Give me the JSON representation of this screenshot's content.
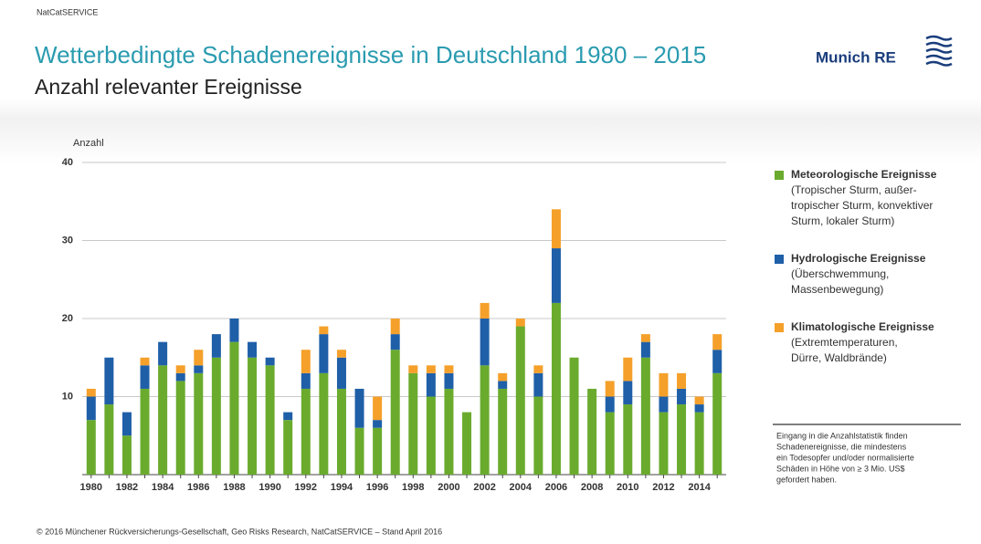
{
  "header": "NatCatSERVICE",
  "logo": "Munich RE",
  "chart_data": {
    "type": "stacked-bar",
    "title": "Wetterbedingte Schadenereignisse in Deutschland 1980 – 2015",
    "subtitle": "Anzahl relevanter Ereignisse",
    "y_label": "Anzahl",
    "categories": [
      "1980",
      null,
      "1982",
      null,
      "1984",
      null,
      "1986",
      null,
      "1988",
      null,
      "1990",
      null,
      "1992",
      null,
      "1994",
      null,
      "1996",
      null,
      "1998",
      null,
      "2000",
      null,
      "2002",
      null,
      "2004",
      null,
      "2006",
      null,
      "2008",
      null,
      "2010",
      null,
      "2012",
      null,
      "2014",
      null
    ],
    "series": [
      {
        "name": "Meteorologische Ereignisse",
        "description": [
          "(Tropischer Sturm, außer-",
          "tropischer Sturm, konvektiver",
          "Sturm, lokaler Sturm)"
        ],
        "color": "#6aab2e",
        "values": [
          7,
          9,
          5,
          11,
          14,
          12,
          13,
          15,
          17,
          15,
          14,
          7,
          11,
          13,
          11,
          6,
          6,
          16,
          13,
          10,
          11,
          8,
          14,
          11,
          19,
          10,
          22,
          15,
          11,
          8,
          9,
          15,
          8,
          9,
          8,
          13
        ]
      },
      {
        "name": "Hydrologische Ereignisse",
        "description": [
          "(Überschwemmung,",
          "Massenbewegung)"
        ],
        "color": "#1f5fa8",
        "values": [
          3,
          6,
          3,
          3,
          3,
          1,
          1,
          3,
          3,
          2,
          1,
          1,
          2,
          5,
          4,
          5,
          1,
          2,
          0,
          3,
          2,
          0,
          6,
          1,
          0,
          3,
          7,
          0,
          0,
          2,
          3,
          2,
          2,
          2,
          1,
          3
        ]
      },
      {
        "name": "Klimatologische Ereignisse",
        "description": [
          "(Extremtemperaturen,",
          "Dürre, Waldbrände)"
        ],
        "color": "#f5a02a",
        "values": [
          1,
          0,
          0,
          1,
          0,
          1,
          2,
          0,
          0,
          0,
          0,
          0,
          3,
          1,
          1,
          0,
          3,
          2,
          1,
          1,
          1,
          0,
          2,
          1,
          1,
          1,
          5,
          0,
          0,
          2,
          3,
          1,
          3,
          2,
          1,
          2
        ]
      }
    ],
    "ylim": [
      0,
      40
    ],
    "yticks": [
      10,
      20,
      30,
      40
    ],
    "grid": true
  },
  "note": [
    "Eingang in die Anzahlstatistik finden",
    "Schadenereignisse, die mindestens",
    "ein Todesopfer und/oder normalisierte",
    "Schäden in Höhe von ≥ 3 Mio. US$",
    "gefordert haben."
  ],
  "footer": "© 2016 Münchener Rückversicherungs-Gesellschaft, Geo Risks Research, NatCatSERVICE – Stand April 2016"
}
